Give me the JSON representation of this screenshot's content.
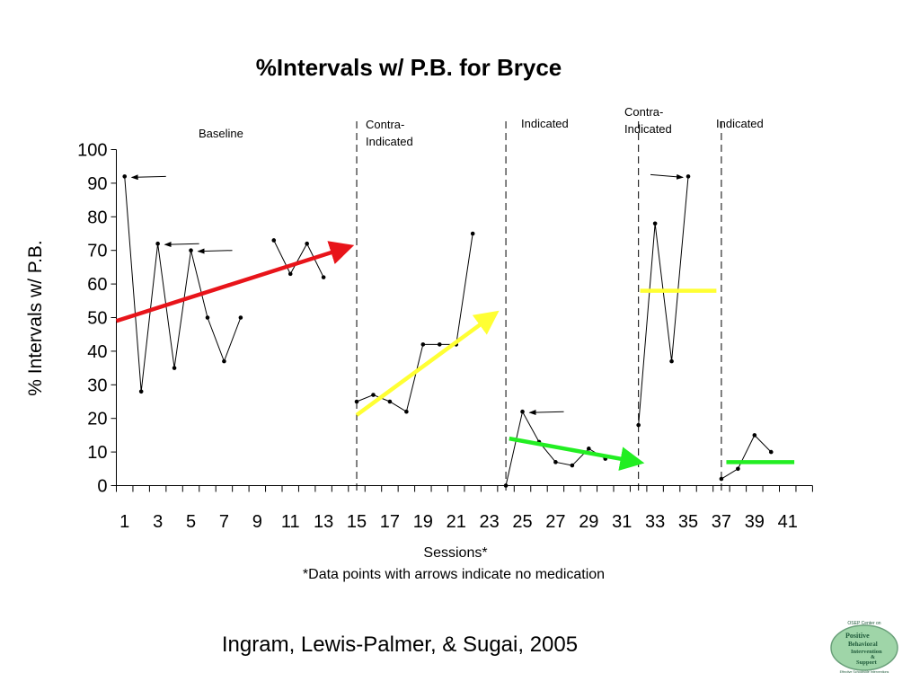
{
  "chart_data": {
    "type": "line",
    "title": "%Intervals w/ P.B. for Bryce",
    "xlabel": "Sessions*",
    "ylabel": "% Intervals w/ P.B.",
    "footnote": "*Data points with arrows indicate no medication",
    "xlim": [
      0,
      41
    ],
    "ylim": [
      0,
      100
    ],
    "yticks": [
      0,
      10,
      20,
      30,
      40,
      50,
      60,
      70,
      80,
      90,
      100
    ],
    "xticks": [
      1,
      3,
      5,
      7,
      9,
      11,
      13,
      15,
      17,
      19,
      21,
      23,
      25,
      27,
      29,
      31,
      33,
      35,
      37,
      39,
      41
    ],
    "grid": false,
    "phases": [
      {
        "label": "Baseline"
      },
      {
        "label": "Contra-\nIndicated"
      },
      {
        "label": "Indicated"
      },
      {
        "label": "Contra-\nIndicated"
      },
      {
        "label": "Indicated"
      }
    ],
    "phase_change_lines": [
      14.5,
      23.5,
      31.5,
      36.5
    ],
    "series": [
      {
        "points": [
          [
            1,
            92
          ],
          [
            2,
            28
          ],
          [
            3,
            72
          ],
          [
            4,
            35
          ],
          [
            5,
            70
          ],
          [
            6,
            50
          ],
          [
            7,
            37
          ],
          [
            8,
            50
          ]
        ]
      },
      {
        "points": [
          [
            10,
            73
          ],
          [
            11,
            63
          ],
          [
            12,
            72
          ],
          [
            13,
            62
          ]
        ]
      },
      {
        "points": [
          [
            15,
            25
          ],
          [
            16,
            27
          ],
          [
            17,
            25
          ],
          [
            18,
            22
          ],
          [
            19,
            42
          ],
          [
            20,
            42
          ],
          [
            21,
            42
          ],
          [
            22,
            75
          ]
        ]
      },
      {
        "points": [
          [
            24,
            0
          ],
          [
            25,
            22
          ],
          [
            26,
            13
          ],
          [
            27,
            7
          ],
          [
            28,
            6
          ],
          [
            29,
            11
          ],
          [
            30,
            8
          ]
        ]
      },
      {
        "points": [
          [
            32,
            18
          ],
          [
            33,
            78
          ],
          [
            34,
            37
          ],
          [
            35,
            92
          ]
        ]
      },
      {
        "points": [
          [
            37,
            2
          ],
          [
            38,
            5
          ],
          [
            39,
            15
          ],
          [
            40,
            10
          ]
        ]
      }
    ],
    "no_medication_points": [
      [
        1,
        92
      ],
      [
        3,
        72
      ],
      [
        5,
        70
      ],
      [
        25,
        22
      ],
      [
        35,
        92
      ]
    ],
    "trend_lines": [
      {
        "color": "#e8141a",
        "from": [
          0,
          49
        ],
        "to": [
          14,
          71
        ],
        "arrow": true
      },
      {
        "color": "#ffff33",
        "from": [
          14.5,
          21
        ],
        "to": [
          22.8,
          51
        ],
        "arrow": true
      },
      {
        "color": "#22ee22",
        "from": [
          23.7,
          14
        ],
        "to": [
          31.5,
          7
        ],
        "arrow": true
      },
      {
        "color": "#ffff33",
        "from": [
          31.6,
          58
        ],
        "to": [
          36.2,
          58
        ],
        "arrow": false
      },
      {
        "color": "#22ee22",
        "from": [
          36.8,
          7
        ],
        "to": [
          40.9,
          7
        ],
        "arrow": false
      }
    ]
  },
  "citation": "Ingram,  Lewis-Palmer, & Sugai, 2005",
  "logo": {
    "header": "OSEP Center on",
    "lines": [
      "Positive",
      "Behavioral",
      "Intervention",
      "&",
      "Support"
    ],
    "footer": "Effective Schoolwide Interventions",
    "color": "#1f5a3a",
    "bg": "#9fd5a8"
  }
}
